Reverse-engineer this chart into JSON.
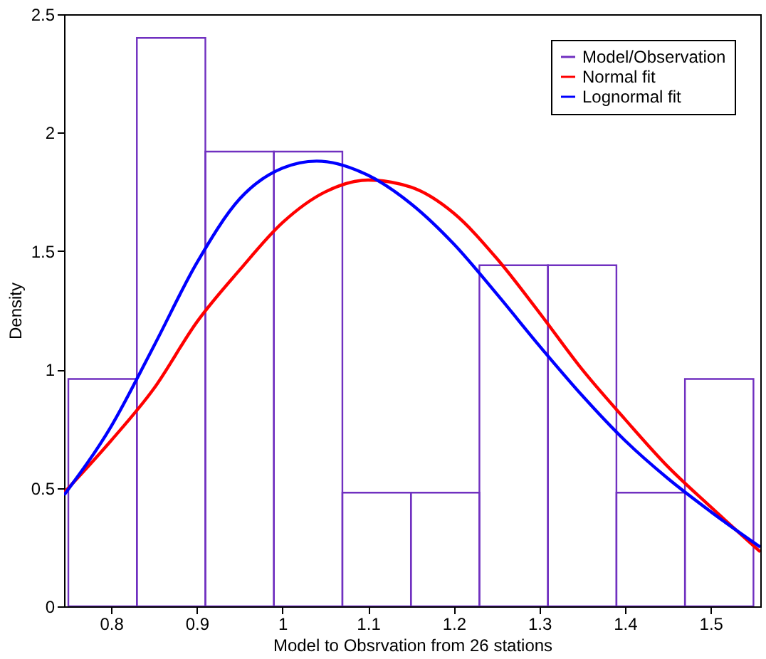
{
  "chart_data": {
    "type": "histogram",
    "xlabel": "Model to Obsrvation from 26 stations",
    "ylabel": "Density",
    "bins": [
      0.75,
      0.83,
      0.91,
      0.99,
      1.07,
      1.15,
      1.23,
      1.31,
      1.39,
      1.47,
      1.55
    ],
    "series": [
      {
        "name": "Model/Observation",
        "color": "#7030c0",
        "values": [
          0.96,
          2.4,
          1.92,
          1.92,
          0.48,
          0.48,
          1.44,
          1.44,
          0.48,
          0.96
        ]
      },
      {
        "name": "Normal fit",
        "type": "line",
        "color": "#ff0000",
        "x": [
          0.745,
          0.8,
          0.85,
          0.9,
          0.95,
          1.0,
          1.05,
          1.1,
          1.15,
          1.2,
          1.25,
          1.3,
          1.35,
          1.4,
          1.45,
          1.5,
          1.558
        ],
        "values": [
          0.48,
          0.7,
          0.92,
          1.2,
          1.42,
          1.62,
          1.75,
          1.8,
          1.77,
          1.66,
          1.47,
          1.24,
          1.0,
          0.79,
          0.59,
          0.42,
          0.23
        ]
      },
      {
        "name": "Lognormal fit",
        "type": "line",
        "color": "#0000ff",
        "x": [
          0.745,
          0.8,
          0.85,
          0.9,
          0.95,
          1.0,
          1.04,
          1.1,
          1.15,
          1.2,
          1.25,
          1.3,
          1.35,
          1.4,
          1.45,
          1.5,
          1.558
        ],
        "values": [
          0.47,
          0.76,
          1.1,
          1.45,
          1.72,
          1.85,
          1.88,
          1.82,
          1.7,
          1.53,
          1.32,
          1.1,
          0.89,
          0.7,
          0.54,
          0.4,
          0.25
        ]
      }
    ],
    "xlim": [
      0.745,
      1.558
    ],
    "ylim": [
      0,
      2.5
    ],
    "xticks": [
      0.8,
      0.9,
      1,
      1.1,
      1.2,
      1.3,
      1.4,
      1.5
    ],
    "yticks": [
      0,
      0.5,
      1,
      1.5,
      2,
      2.5
    ],
    "legend": "top right"
  }
}
